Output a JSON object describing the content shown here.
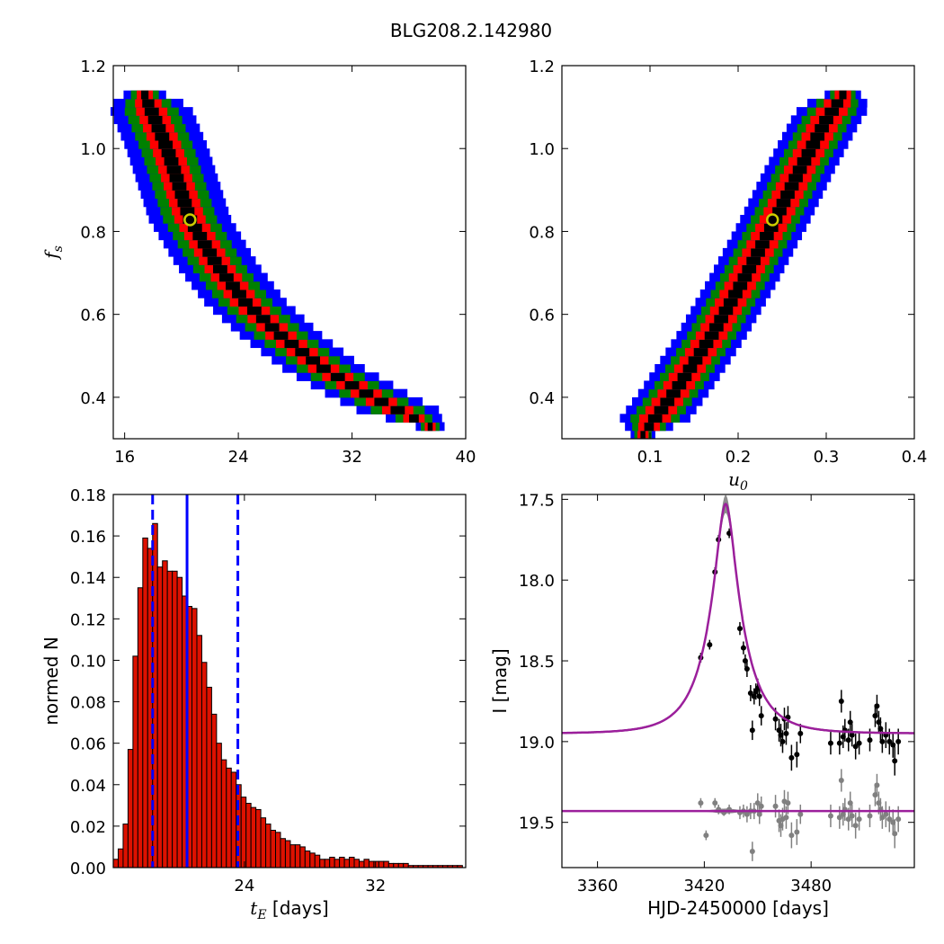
{
  "figure": {
    "title": "BLG208.2.142980"
  },
  "colors": {
    "level1": "#000000",
    "level2": "#ff0000",
    "level3": "#008000",
    "level4": "#0000ff",
    "best_fit_marker": "#cccc00",
    "histogram_fill": "#dd1100",
    "interval_lines": "#0000ff",
    "model_curve": "#9b1f9b",
    "model_band": "#808080",
    "data_points": "#000000",
    "residual_points": "#808080"
  },
  "chart_data": [
    {
      "type": "heatmap",
      "name": "fs-vs-tE",
      "xlabel": "",
      "ylabel": "f_s",
      "xlim": [
        15.2,
        40
      ],
      "ylim": [
        0.3,
        1.2
      ],
      "xticks": [
        "16",
        "24",
        "32",
        "40"
      ],
      "xtick_values": [
        16,
        24,
        32,
        40
      ],
      "yticks": [
        "0.4",
        "0.6",
        "0.8",
        "1.0",
        "1.2"
      ],
      "ytick_values": [
        0.4,
        0.6,
        0.8,
        1.0,
        1.2
      ],
      "best_fit": {
        "x": 20.6,
        "y": 0.828
      },
      "ridge": [
        [
          17.3,
          1.14
        ],
        [
          19.0,
          1.0
        ],
        [
          20.6,
          0.83
        ],
        [
          22.5,
          0.72
        ],
        [
          24.5,
          0.63
        ],
        [
          27.0,
          0.55
        ],
        [
          30.0,
          0.47
        ],
        [
          33.5,
          0.4
        ],
        [
          37.5,
          0.33
        ]
      ],
      "half_widths_x": [
        0.5,
        1.1,
        1.9,
        2.9
      ]
    },
    {
      "type": "heatmap",
      "name": "fs-vs-u0",
      "xlabel": "u_0",
      "ylabel": "",
      "xlim": [
        0.0,
        0.4
      ],
      "ylim": [
        0.3,
        1.2
      ],
      "xticks": [
        "0.1",
        "0.2",
        "0.3",
        "0.4"
      ],
      "xtick_values": [
        0.1,
        0.2,
        0.3,
        0.4
      ],
      "yticks": [
        "0.4",
        "0.6",
        "0.8",
        "1.0",
        "1.2"
      ],
      "ytick_values": [
        0.4,
        0.6,
        0.8,
        1.0,
        1.2
      ],
      "best_fit": {
        "x": 0.239,
        "y": 0.828
      },
      "ridge": [
        [
          0.092,
          0.31
        ],
        [
          0.13,
          0.42
        ],
        [
          0.17,
          0.55
        ],
        [
          0.205,
          0.68
        ],
        [
          0.24,
          0.82
        ],
        [
          0.27,
          0.95
        ],
        [
          0.3,
          1.07
        ],
        [
          0.322,
          1.14
        ]
      ],
      "half_widths_x": [
        0.008,
        0.018,
        0.028,
        0.04
      ]
    },
    {
      "type": "bar",
      "name": "tE-histogram",
      "xlabel": "t_E  [days]",
      "ylabel": "normed N",
      "xlim": [
        16.0,
        37.5
      ],
      "ylim": [
        0.0,
        0.18
      ],
      "xticks": [
        "24",
        "32"
      ],
      "xtick_values": [
        24,
        32
      ],
      "yticks": [
        "0.00",
        "0.02",
        "0.04",
        "0.06",
        "0.08",
        "0.10",
        "0.12",
        "0.14",
        "0.16",
        "0.18"
      ],
      "ytick_values": [
        0.0,
        0.02,
        0.04,
        0.06,
        0.08,
        0.1,
        0.12,
        0.14,
        0.16,
        0.18
      ],
      "bin_start": 16.0,
      "bin_width": 0.3,
      "values": [
        0.004,
        0.009,
        0.021,
        0.057,
        0.102,
        0.135,
        0.159,
        0.154,
        0.166,
        0.145,
        0.148,
        0.143,
        0.143,
        0.14,
        0.131,
        0.126,
        0.125,
        0.112,
        0.099,
        0.087,
        0.074,
        0.06,
        0.052,
        0.048,
        0.046,
        0.04,
        0.034,
        0.031,
        0.029,
        0.028,
        0.024,
        0.021,
        0.018,
        0.017,
        0.014,
        0.013,
        0.011,
        0.011,
        0.01,
        0.008,
        0.007,
        0.006,
        0.004,
        0.004,
        0.005,
        0.004,
        0.005,
        0.004,
        0.005,
        0.004,
        0.003,
        0.004,
        0.003,
        0.003,
        0.003,
        0.003,
        0.002,
        0.002,
        0.002,
        0.002,
        0.001,
        0.001,
        0.001,
        0.001,
        0.001,
        0.001,
        0.001,
        0.001,
        0.001,
        0.001,
        0.001
      ],
      "vlines": [
        {
          "x": 18.4,
          "style": "dashed"
        },
        {
          "x": 20.5,
          "style": "solid"
        },
        {
          "x": 23.6,
          "style": "dashed"
        }
      ]
    },
    {
      "type": "scatter",
      "name": "light-curve",
      "xlabel": "HJD-2450000 [days]",
      "ylabel": "I [mag]",
      "xlim": [
        3340,
        3538
      ],
      "ylim": [
        19.78,
        17.47
      ],
      "xticks": [
        "3360",
        "3420",
        "3480"
      ],
      "xtick_values": [
        3360,
        3420,
        3480
      ],
      "yticks": [
        "17.5",
        "18.0",
        "18.5",
        "19.0",
        "19.5"
      ],
      "ytick_values": [
        17.5,
        18.0,
        18.5,
        19.0,
        19.5
      ],
      "model": {
        "t0": 3432,
        "tE": 20.5,
        "u0": 0.24,
        "fs": 0.83,
        "baseline": 18.95,
        "residual_offset": 19.43
      },
      "data": [
        [
          3418,
          18.48,
          0.03
        ],
        [
          3423,
          18.4,
          0.03
        ],
        [
          3426,
          17.95,
          0.03
        ],
        [
          3428,
          17.75,
          0.03
        ],
        [
          3434,
          17.71,
          0.03
        ],
        [
          3440,
          18.3,
          0.04
        ],
        [
          3442,
          18.42,
          0.04
        ],
        [
          3443,
          18.5,
          0.04
        ],
        [
          3444,
          18.55,
          0.05
        ],
        [
          3446,
          18.7,
          0.05
        ],
        [
          3447,
          18.93,
          0.06
        ],
        [
          3448,
          18.72,
          0.05
        ],
        [
          3449,
          18.69,
          0.05
        ],
        [
          3450,
          18.67,
          0.06
        ],
        [
          3451,
          18.72,
          0.06
        ],
        [
          3452,
          18.84,
          0.06
        ],
        [
          3460,
          18.86,
          0.07
        ],
        [
          3462,
          18.93,
          0.07
        ],
        [
          3463,
          18.96,
          0.07
        ],
        [
          3464,
          19.0,
          0.07
        ],
        [
          3465,
          18.86,
          0.07
        ],
        [
          3466,
          18.95,
          0.07
        ],
        [
          3467,
          18.85,
          0.07
        ],
        [
          3469,
          19.1,
          0.08
        ],
        [
          3472,
          19.08,
          0.08
        ],
        [
          3474,
          18.95,
          0.06
        ],
        [
          3491,
          19.01,
          0.07
        ],
        [
          3496,
          19.01,
          0.07
        ],
        [
          3497,
          18.75,
          0.07
        ],
        [
          3498,
          18.97,
          0.07
        ],
        [
          3499,
          18.93,
          0.07
        ],
        [
          3501,
          18.99,
          0.07
        ],
        [
          3502,
          18.88,
          0.07
        ],
        [
          3503,
          18.96,
          0.07
        ],
        [
          3505,
          19.03,
          0.08
        ],
        [
          3507,
          19.01,
          0.07
        ],
        [
          3513,
          18.99,
          0.07
        ],
        [
          3516,
          18.84,
          0.07
        ],
        [
          3517,
          18.78,
          0.07
        ],
        [
          3518,
          18.88,
          0.07
        ],
        [
          3519,
          18.92,
          0.07
        ],
        [
          3520,
          19.0,
          0.07
        ],
        [
          3522,
          18.96,
          0.08
        ],
        [
          3524,
          19.0,
          0.08
        ],
        [
          3526,
          19.02,
          0.08
        ],
        [
          3527,
          19.12,
          0.09
        ],
        [
          3529,
          19.0,
          0.08
        ]
      ],
      "residuals": [
        [
          3418,
          19.38,
          0.03
        ],
        [
          3421,
          19.58,
          0.03
        ],
        [
          3426,
          19.38,
          0.03
        ],
        [
          3428,
          19.42,
          0.03
        ],
        [
          3431,
          19.44,
          0.02
        ],
        [
          3434,
          19.42,
          0.03
        ],
        [
          3440,
          19.44,
          0.04
        ],
        [
          3442,
          19.43,
          0.04
        ],
        [
          3444,
          19.45,
          0.05
        ],
        [
          3446,
          19.43,
          0.05
        ],
        [
          3447,
          19.68,
          0.06
        ],
        [
          3448,
          19.43,
          0.05
        ],
        [
          3450,
          19.38,
          0.06
        ],
        [
          3451,
          19.45,
          0.06
        ],
        [
          3452,
          19.4,
          0.06
        ],
        [
          3460,
          19.4,
          0.07
        ],
        [
          3462,
          19.49,
          0.07
        ],
        [
          3463,
          19.52,
          0.07
        ],
        [
          3464,
          19.48,
          0.07
        ],
        [
          3465,
          19.37,
          0.07
        ],
        [
          3466,
          19.47,
          0.07
        ],
        [
          3467,
          19.38,
          0.07
        ],
        [
          3469,
          19.58,
          0.08
        ],
        [
          3472,
          19.56,
          0.08
        ],
        [
          3474,
          19.45,
          0.06
        ],
        [
          3491,
          19.46,
          0.07
        ],
        [
          3496,
          19.47,
          0.07
        ],
        [
          3497,
          19.24,
          0.07
        ],
        [
          3498,
          19.45,
          0.07
        ],
        [
          3499,
          19.42,
          0.07
        ],
        [
          3501,
          19.48,
          0.07
        ],
        [
          3502,
          19.38,
          0.07
        ],
        [
          3503,
          19.46,
          0.07
        ],
        [
          3505,
          19.52,
          0.08
        ],
        [
          3507,
          19.48,
          0.07
        ],
        [
          3513,
          19.46,
          0.07
        ],
        [
          3516,
          19.33,
          0.07
        ],
        [
          3517,
          19.27,
          0.07
        ],
        [
          3518,
          19.38,
          0.07
        ],
        [
          3519,
          19.42,
          0.07
        ],
        [
          3520,
          19.47,
          0.07
        ],
        [
          3522,
          19.45,
          0.08
        ],
        [
          3524,
          19.48,
          0.08
        ],
        [
          3526,
          19.5,
          0.08
        ],
        [
          3527,
          19.57,
          0.09
        ],
        [
          3529,
          19.48,
          0.08
        ]
      ]
    }
  ]
}
